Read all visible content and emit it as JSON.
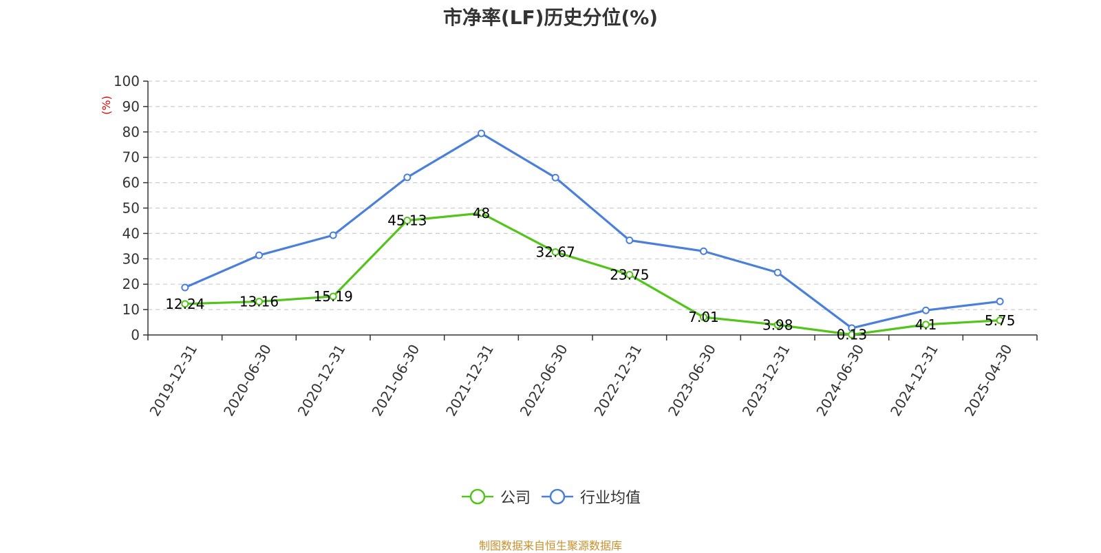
{
  "chart_data": {
    "type": "line",
    "title": "市净率(LF)历史分位(%)",
    "ylabel": "(%)",
    "xlabel": "",
    "ylim": [
      0,
      100
    ],
    "yticks": [
      0,
      10,
      20,
      30,
      40,
      50,
      60,
      70,
      80,
      90,
      100
    ],
    "categories": [
      "2019-12-31",
      "2020-06-30",
      "2020-12-31",
      "2021-06-30",
      "2021-12-31",
      "2022-06-30",
      "2022-12-31",
      "2023-06-30",
      "2023-12-31",
      "2024-06-30",
      "2024-12-31",
      "2025-04-30"
    ],
    "series": [
      {
        "name": "公司",
        "color": "#52c41a",
        "values": [
          12.24,
          13.16,
          15.19,
          45.13,
          48,
          32.67,
          23.75,
          7.01,
          3.98,
          0.13,
          4.1,
          5.75
        ],
        "labels": [
          "12.24",
          "13.16",
          "15.19",
          "45.13",
          "48",
          "32.67",
          "23.75",
          "7.01",
          "3.98",
          "0.13",
          "4.1",
          "5.75"
        ]
      },
      {
        "name": "行业均值",
        "color": "#4a7fdc",
        "values": [
          18.7,
          31.4,
          39.3,
          62.1,
          79.4,
          62.0,
          37.3,
          33.0,
          24.6,
          2.7,
          9.7,
          13.2
        ]
      }
    ],
    "grid": true,
    "legend_position": "bottom-center"
  },
  "source": {
    "text": "制图数据来自恒生聚源数据库",
    "color": "#c8902e"
  },
  "ylabel_color": "#e00000"
}
